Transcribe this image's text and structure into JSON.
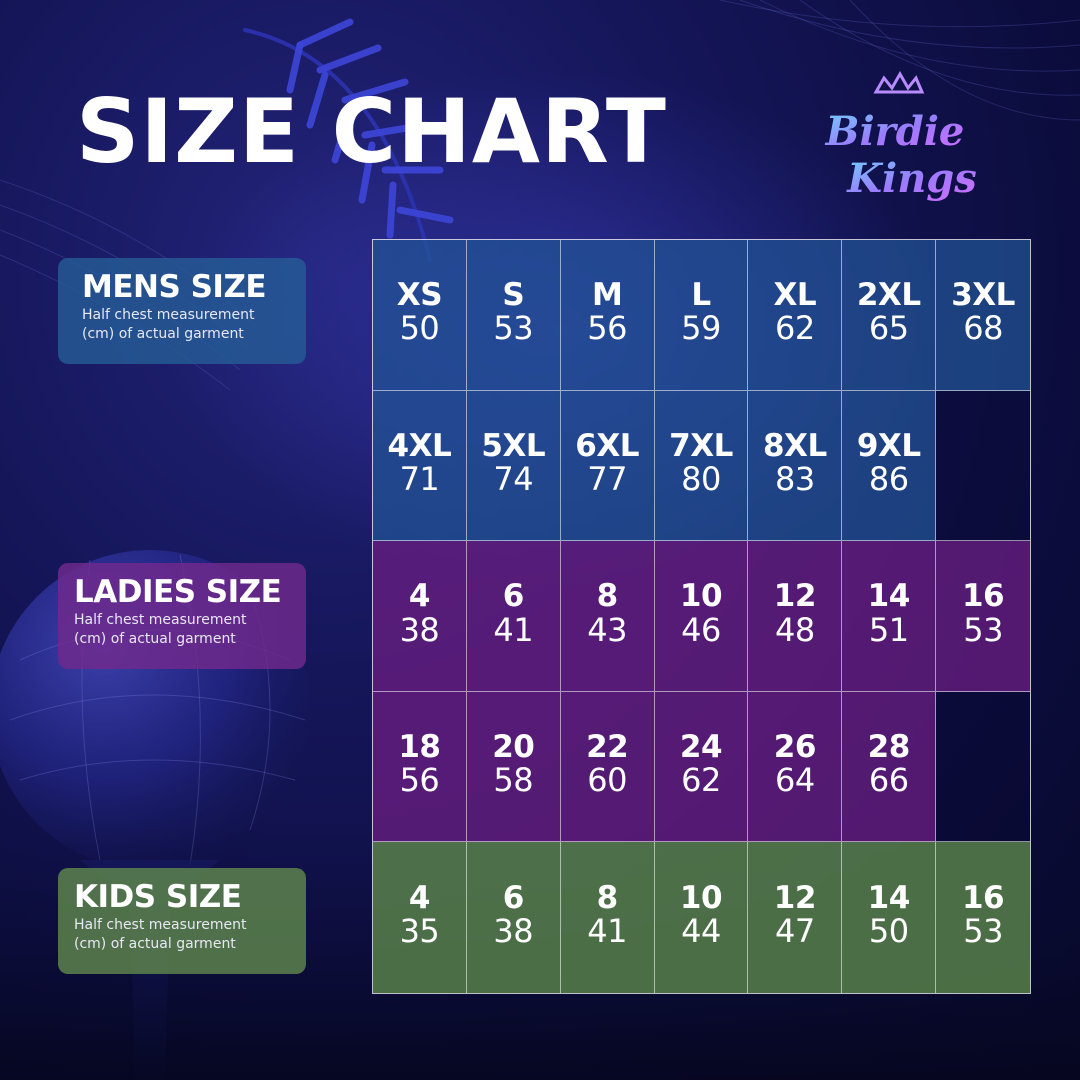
{
  "title": "SIZE CHART",
  "brand": {
    "logo_text": "Birdie Kings"
  },
  "colors": {
    "mens": "#2a5b96",
    "ladies": "#6a2a86",
    "kids": "#5b834c",
    "background": "#15165a"
  },
  "sections": [
    {
      "key": "mens",
      "label": "MENS SIZE",
      "subtitle_line1": "Half chest measurement",
      "subtitle_line2": "(cm) of actual garment",
      "rows": [
        [
          {
            "size": "XS",
            "cm": "50"
          },
          {
            "size": "S",
            "cm": "53"
          },
          {
            "size": "M",
            "cm": "56"
          },
          {
            "size": "L",
            "cm": "59"
          },
          {
            "size": "XL",
            "cm": "62"
          },
          {
            "size": "2XL",
            "cm": "65"
          },
          {
            "size": "3XL",
            "cm": "68"
          }
        ],
        [
          {
            "size": "4XL",
            "cm": "71"
          },
          {
            "size": "5XL",
            "cm": "74"
          },
          {
            "size": "6XL",
            "cm": "77"
          },
          {
            "size": "7XL",
            "cm": "80"
          },
          {
            "size": "8XL",
            "cm": "83"
          },
          {
            "size": "9XL",
            "cm": "86"
          }
        ]
      ]
    },
    {
      "key": "ladies",
      "label": "LADIES SIZE",
      "subtitle_line1": "Half chest measurement",
      "subtitle_line2": "(cm) of actual garment",
      "rows": [
        [
          {
            "size": "4",
            "cm": "38"
          },
          {
            "size": "6",
            "cm": "41"
          },
          {
            "size": "8",
            "cm": "43"
          },
          {
            "size": "10",
            "cm": "46"
          },
          {
            "size": "12",
            "cm": "48"
          },
          {
            "size": "14",
            "cm": "51"
          },
          {
            "size": "16",
            "cm": "53"
          }
        ],
        [
          {
            "size": "18",
            "cm": "56"
          },
          {
            "size": "20",
            "cm": "58"
          },
          {
            "size": "22",
            "cm": "60"
          },
          {
            "size": "24",
            "cm": "62"
          },
          {
            "size": "26",
            "cm": "64"
          },
          {
            "size": "28",
            "cm": "66"
          }
        ]
      ]
    },
    {
      "key": "kids",
      "label": "KIDS SIZE",
      "subtitle_line1": "Half chest measurement",
      "subtitle_line2": "(cm) of actual garment",
      "rows": [
        [
          {
            "size": "4",
            "cm": "35"
          },
          {
            "size": "6",
            "cm": "38"
          },
          {
            "size": "8",
            "cm": "41"
          },
          {
            "size": "10",
            "cm": "44"
          },
          {
            "size": "12",
            "cm": "47"
          },
          {
            "size": "14",
            "cm": "50"
          },
          {
            "size": "16",
            "cm": "53"
          }
        ]
      ]
    }
  ]
}
